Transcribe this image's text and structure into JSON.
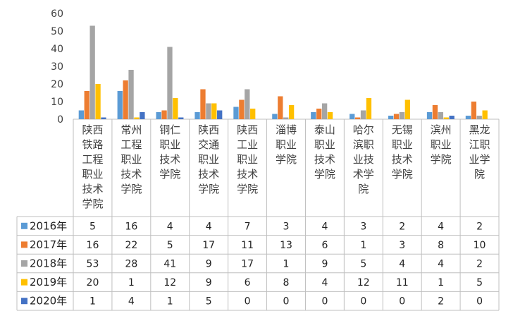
{
  "chart_data": {
    "type": "bar",
    "title": "",
    "xlabel": "",
    "ylabel": "",
    "ylim": [
      0,
      60
    ],
    "yticks": [
      0,
      10,
      20,
      30,
      40,
      50,
      60
    ],
    "grid": false,
    "legend": "data-table-left",
    "categories": [
      "陕西铁路工程职业技术学院",
      "常州工程职业技术学院",
      "铜仁职业技术学院",
      "陕西交通职业技术学院",
      "陕西工业职业技术学院",
      "淄博职业学院",
      "泰山职业技术学院",
      "哈尔滨职业技术学院",
      "无锡职业技术学院",
      "滨州职业学院",
      "黑龙江职业学院"
    ],
    "category_lines": [
      [
        "陕西",
        "铁路",
        "工程",
        "职业",
        "技术",
        "学院"
      ],
      [
        "常州",
        "工程",
        "职业",
        "技术",
        "学院"
      ],
      [
        "铜仁",
        "职业",
        "技术",
        "学院"
      ],
      [
        "陕西",
        "交通",
        "职业",
        "技术",
        "学院"
      ],
      [
        "陕西",
        "工业",
        "职业",
        "技术",
        "学院"
      ],
      [
        "淄博",
        "职业",
        "学院"
      ],
      [
        "泰山",
        "职业",
        "技术",
        "学院"
      ],
      [
        "哈尔",
        "滨职",
        "业技",
        "术学",
        "院"
      ],
      [
        "无锡",
        "职业",
        "技术",
        "学院"
      ],
      [
        "滨州",
        "职业",
        "学院"
      ],
      [
        "黑龙",
        "江职",
        "业学",
        "院"
      ]
    ],
    "series": [
      {
        "name": "2016年",
        "color": "#5B9BD5",
        "values": [
          5,
          16,
          4,
          4,
          7,
          3,
          4,
          3,
          2,
          4,
          2
        ]
      },
      {
        "name": "2017年",
        "color": "#ED7D31",
        "values": [
          16,
          22,
          5,
          17,
          11,
          13,
          6,
          1,
          3,
          8,
          10
        ]
      },
      {
        "name": "2018年",
        "color": "#A5A5A5",
        "values": [
          53,
          28,
          41,
          9,
          17,
          1,
          9,
          5,
          4,
          4,
          2
        ]
      },
      {
        "name": "2019年",
        "color": "#FFC000",
        "values": [
          20,
          1,
          12,
          9,
          6,
          8,
          4,
          12,
          11,
          1,
          5
        ]
      },
      {
        "name": "2020年",
        "color": "#4472C4",
        "values": [
          1,
          4,
          1,
          5,
          0,
          0,
          0,
          0,
          0,
          2,
          0
        ]
      }
    ]
  }
}
